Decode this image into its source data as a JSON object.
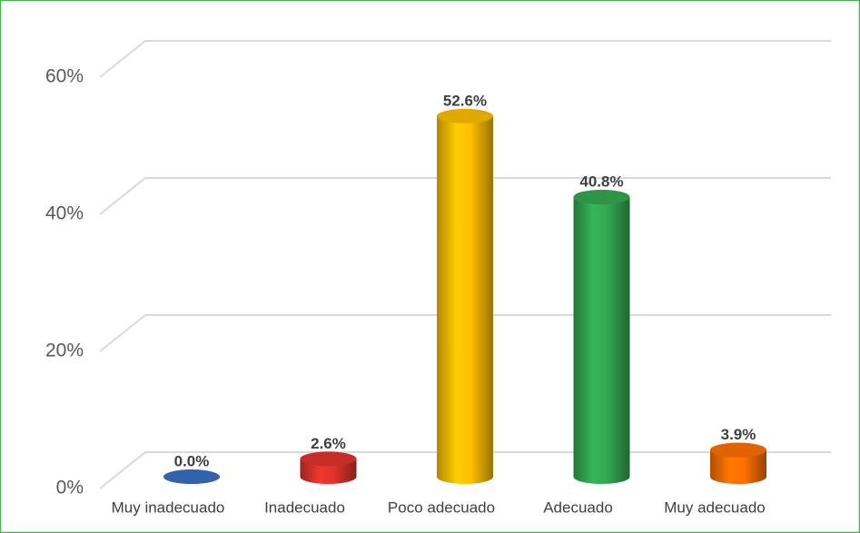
{
  "chart_data": {
    "type": "bar3d",
    "categories": [
      "Muy inadecuado",
      "Inadecuado",
      "Poco adecuado",
      "Adecuado",
      "Muy adecuado"
    ],
    "values": [
      0,
      2.6,
      52.6,
      40.8,
      3.9
    ],
    "value_labels": [
      "0.0%",
      "2.6%",
      "52.6%",
      "40.8%",
      "3.9%"
    ],
    "colors": [
      "#3a6fc4",
      "#e0332b",
      "#ffc000",
      "#33a852",
      "#ff7000"
    ],
    "ylim": [
      0,
      60
    ],
    "yticks": [
      {
        "value": 0,
        "label": "0%"
      },
      {
        "value": 20,
        "label": "20%"
      },
      {
        "value": 40,
        "label": "40%"
      },
      {
        "value": 60,
        "label": "60%"
      }
    ],
    "grid": true
  }
}
